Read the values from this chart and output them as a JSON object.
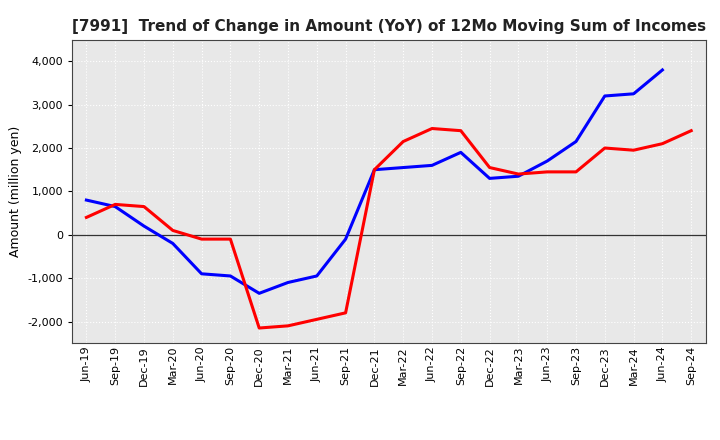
{
  "title": "[7991]  Trend of Change in Amount (YoY) of 12Mo Moving Sum of Incomes",
  "ylabel": "Amount (million yen)",
  "xlabels": [
    "Jun-19",
    "Sep-19",
    "Dec-19",
    "Mar-20",
    "Jun-20",
    "Sep-20",
    "Dec-20",
    "Mar-21",
    "Jun-21",
    "Sep-21",
    "Dec-21",
    "Mar-22",
    "Jun-22",
    "Sep-22",
    "Dec-22",
    "Mar-23",
    "Jun-23",
    "Sep-23",
    "Dec-23",
    "Mar-24",
    "Jun-24",
    "Sep-24"
  ],
  "ordinary_income": [
    800,
    650,
    200,
    -200,
    -900,
    -950,
    -1350,
    -1100,
    -950,
    -100,
    1500,
    1550,
    1600,
    1900,
    1300,
    1350,
    1700,
    2150,
    3200,
    3250,
    3800,
    null
  ],
  "net_income": [
    400,
    700,
    650,
    100,
    -100,
    -100,
    -2150,
    -2100,
    -1950,
    -1800,
    1500,
    2150,
    2450,
    2400,
    1550,
    1400,
    1450,
    1450,
    2000,
    1950,
    2100,
    2400
  ],
  "ordinary_color": "#0000ff",
  "net_color": "#ff0000",
  "ylim": [
    -2500,
    4500
  ],
  "yticks": [
    -2000,
    -1000,
    0,
    1000,
    2000,
    3000,
    4000
  ],
  "line_width": 2.2,
  "bg_color": "#ffffff",
  "plot_bg_color": "#e8e8e8",
  "grid_color": "#ffffff",
  "title_fontsize": 11,
  "ylabel_fontsize": 9,
  "tick_fontsize": 8,
  "legend_fontsize": 9
}
